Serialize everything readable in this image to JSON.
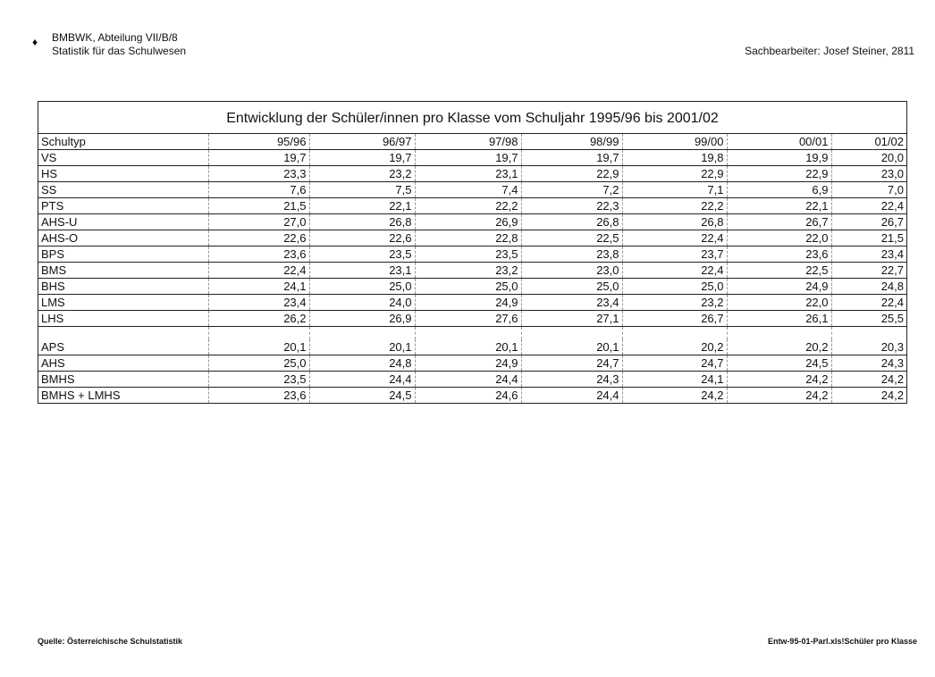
{
  "header": {
    "org_line1": "BMBWK, Abteilung VII/B/8",
    "org_line2": "Statistik für das Schulwesen",
    "clerk": "Sachbearbeiter: Josef Steiner, 2811"
  },
  "table": {
    "title": "Entwicklung der Schüler/innen pro Klasse vom Schuljahr 1995/96 bis 2001/02",
    "columns": [
      "Schultyp",
      "95/96",
      "96/97",
      "97/98",
      "98/99",
      "99/00",
      "00/01",
      "01/02"
    ],
    "rows": [
      [
        "VS",
        "19,7",
        "19,7",
        "19,7",
        "19,7",
        "19,8",
        "19,9",
        "20,0"
      ],
      [
        "HS",
        "23,3",
        "23,2",
        "23,1",
        "22,9",
        "22,9",
        "22,9",
        "23,0"
      ],
      [
        "SS",
        "7,6",
        "7,5",
        "7,4",
        "7,2",
        "7,1",
        "6,9",
        "7,0"
      ],
      [
        "PTS",
        "21,5",
        "22,1",
        "22,2",
        "22,3",
        "22,2",
        "22,1",
        "22,4"
      ],
      [
        "AHS-U",
        "27,0",
        "26,8",
        "26,9",
        "26,8",
        "26,8",
        "26,7",
        "26,7"
      ],
      [
        "AHS-O",
        "22,6",
        "22,6",
        "22,8",
        "22,5",
        "22,4",
        "22,0",
        "21,5"
      ],
      [
        "BPS",
        "23,6",
        "23,5",
        "23,5",
        "23,8",
        "23,7",
        "23,6",
        "23,4"
      ],
      [
        "BMS",
        "22,4",
        "23,1",
        "23,2",
        "23,0",
        "22,4",
        "22,5",
        "22,7"
      ],
      [
        "BHS",
        "24,1",
        "25,0",
        "25,0",
        "25,0",
        "25,0",
        "24,9",
        "24,8"
      ],
      [
        "LMS",
        "23,4",
        "24,0",
        "24,9",
        "23,4",
        "23,2",
        "22,0",
        "22,4"
      ],
      [
        "LHS",
        "26,2",
        "26,9",
        "27,6",
        "27,1",
        "26,7",
        "26,1",
        "25,5"
      ]
    ],
    "summary_rows": [
      [
        "APS",
        "20,1",
        "20,1",
        "20,1",
        "20,1",
        "20,2",
        "20,2",
        "20,3"
      ],
      [
        "AHS",
        "25,0",
        "24,8",
        "24,9",
        "24,7",
        "24,7",
        "24,5",
        "24,3"
      ],
      [
        "BMHS",
        "23,5",
        "24,4",
        "24,4",
        "24,3",
        "24,1",
        "24,2",
        "24,2"
      ],
      [
        "BMHS + LMHS",
        "23,6",
        "24,5",
        "24,6",
        "24,4",
        "24,2",
        "24,2",
        "24,2"
      ]
    ]
  },
  "footer": {
    "source": "Quelle: Österreichische Schulstatistik",
    "file": "Entw-95-01-Parl.xls!Schüler pro Klasse"
  }
}
